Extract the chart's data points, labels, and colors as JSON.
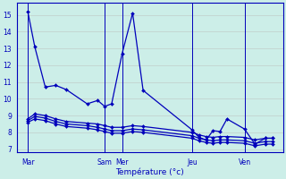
{
  "xlabel": "Température (°c)",
  "background_color": "#cceee8",
  "line_color": "#0000bb",
  "grid_color": "#bbbbbb",
  "ylim": [
    6.8,
    15.7
  ],
  "yticks": [
    7,
    8,
    9,
    10,
    11,
    12,
    13,
    14,
    15
  ],
  "xtick_labels": [
    "Mar",
    "Sam",
    "Mer",
    "Jeu",
    "Ven"
  ],
  "xtick_positions": [
    0,
    22,
    27,
    47,
    62
  ],
  "x": [
    0,
    2,
    5,
    8,
    11,
    17,
    20,
    22,
    24,
    27,
    30,
    33,
    47,
    49,
    51,
    53,
    55,
    57,
    62,
    65,
    68,
    70
  ],
  "s1": [
    15.2,
    13.1,
    10.7,
    10.8,
    10.55,
    9.7,
    9.9,
    9.55,
    9.7,
    12.7,
    15.1,
    10.5,
    8.15,
    7.7,
    7.55,
    8.1,
    8.05,
    8.8,
    8.2,
    7.3,
    7.65,
    7.65
  ],
  "s2": [
    8.8,
    9.1,
    9.0,
    8.8,
    8.65,
    8.55,
    8.5,
    8.4,
    8.3,
    8.3,
    8.4,
    8.35,
    8.0,
    7.85,
    7.75,
    7.7,
    7.75,
    7.75,
    7.7,
    7.55,
    7.65,
    7.65
  ],
  "s3": [
    8.7,
    8.95,
    8.85,
    8.65,
    8.5,
    8.4,
    8.3,
    8.2,
    8.1,
    8.1,
    8.2,
    8.15,
    7.8,
    7.65,
    7.55,
    7.5,
    7.55,
    7.55,
    7.5,
    7.35,
    7.45,
    7.45
  ],
  "s4": [
    8.6,
    8.8,
    8.7,
    8.5,
    8.35,
    8.25,
    8.15,
    8.05,
    7.95,
    7.95,
    8.05,
    8.0,
    7.65,
    7.5,
    7.4,
    7.35,
    7.4,
    7.4,
    7.35,
    7.2,
    7.3,
    7.3
  ]
}
